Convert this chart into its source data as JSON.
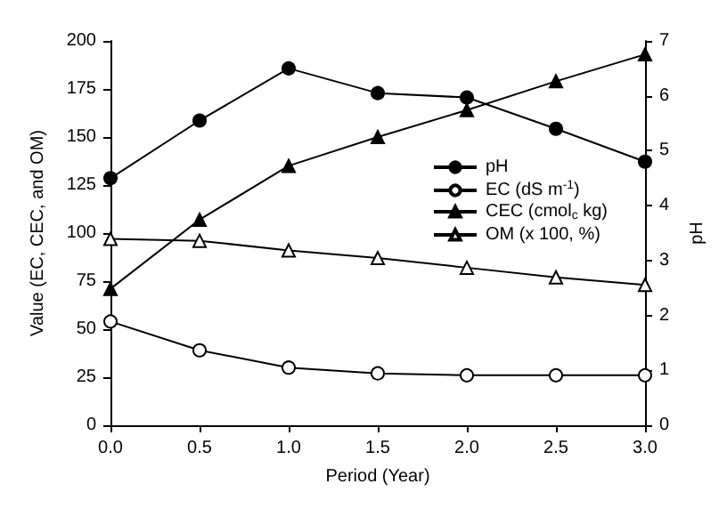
{
  "chart_data": {
    "type": "line",
    "xlabel": "Period (Year)",
    "ylabel": "Value (EC, CEC, and OM)",
    "y2label": "pH",
    "x": [
      0,
      0.5,
      1,
      1.5,
      2,
      2.5,
      3
    ],
    "series": [
      {
        "name": "pH",
        "color": "#000000",
        "marker": "circle",
        "axis": "y2",
        "values": [
          4.5,
          5.55,
          6.5,
          6.05,
          5.97,
          5.4,
          4.8
        ]
      },
      {
        "name": "EC (dS m$^{-1}$)",
        "color": "#ffffff",
        "marker": "circle",
        "values": [
          54,
          39,
          30,
          27,
          26,
          26,
          26
        ]
      },
      {
        "name": "CEC (cmol$_{c}$ kg)",
        "color": "#000000",
        "marker": "triangle",
        "values": [
          71,
          107,
          135,
          150,
          164,
          179,
          193
        ]
      },
      {
        "name": "OM (x 100, %)",
        "color": "#ffffff",
        "marker": "triangle",
        "values": [
          97,
          96,
          91,
          87,
          82,
          77,
          73
        ]
      }
    ],
    "xlim": [
      0,
      3
    ],
    "xticks": [
      {
        "value": 0,
        "label": "0.0"
      },
      0.5,
      {
        "value": 1,
        "label": "1.0"
      },
      1.5,
      {
        "value": 2,
        "label": "2.0"
      },
      2.5,
      {
        "value": 3,
        "label": "3.0"
      }
    ],
    "ylim": [
      0,
      200
    ],
    "yticks": [
      0,
      25,
      50,
      75,
      100,
      125,
      150,
      175,
      200
    ],
    "y2lim": [
      0,
      7
    ],
    "y2ticks": [
      0,
      1,
      2,
      3,
      4,
      5,
      6,
      7
    ],
    "grid": false,
    "legend": "right",
    "line_style": "solid"
  }
}
